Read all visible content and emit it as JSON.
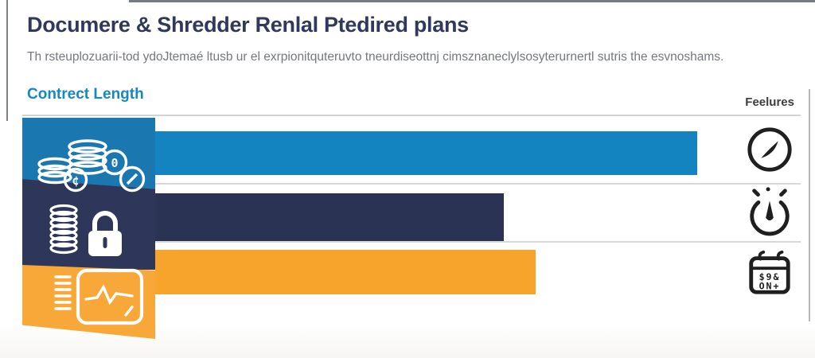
{
  "header": {
    "title": "Documere & Shredder Renlal Ptedired plans",
    "subtitle": "Th rsteuplozuarii-tod ydoJtemaé ltusb ur el exrpionitquteruvto tneurdiseottnj cimsznaneclylsosyterurnertl sutris the esvnoshams."
  },
  "columns": {
    "contract_length_label": "Contrect Length",
    "features_label": "Feelures"
  },
  "rows": [
    {
      "name": "plan-row-1",
      "block_icon": "money-coins-icon",
      "feature_icon": "compass-icon",
      "bar_color": "#1484c0",
      "block_color": "#1a77b0",
      "value": 84
    },
    {
      "name": "plan-row-2",
      "block_icon": "coins-lock-icon",
      "feature_icon": "stopwatch-icon",
      "bar_color": "#2b3355",
      "block_color": "#2e3659",
      "value": 54
    },
    {
      "name": "plan-row-3",
      "block_icon": "monitor-pulse-icon",
      "feature_icon": "calendar-icon",
      "bar_color": "#f6a42c",
      "block_color": "#f8a838",
      "value": 59
    }
  ],
  "icons": {
    "cent_coin_glyph": "¢",
    "zero_coin_glyph": "0",
    "calendar_glyph_row1": "$9&",
    "calendar_glyph_row2": "ON+"
  },
  "colors": {
    "title_navy": "#30395c",
    "subtitle_gray": "#75787d",
    "contract_label_blue": "#1887bd",
    "features_label_gray": "#3e3e3e",
    "separator_gray": "#d2d2d2",
    "feature_icon_dark": "#1f1f1f",
    "background": "#ffffff"
  },
  "chart_data": {
    "type": "bar",
    "orientation": "horizontal",
    "title": "Documere & Shredder Renlal Ptedired plans",
    "axis_section_label": "Contrect Length",
    "right_column_label": "Feelures",
    "categories": [
      "money-coins plan",
      "coins-lock plan",
      "monitor-pulse plan"
    ],
    "values": [
      84,
      54,
      59
    ],
    "value_note": "No numeric labels are rendered; values are estimated bar lengths as percent of the full track width.",
    "bar_colors": [
      "#1484c0",
      "#2b3355",
      "#f6a42c"
    ],
    "feature_icons": [
      "compass",
      "stopwatch",
      "calendar"
    ],
    "xlim": [
      0,
      100
    ],
    "grid": false,
    "legend": false
  }
}
